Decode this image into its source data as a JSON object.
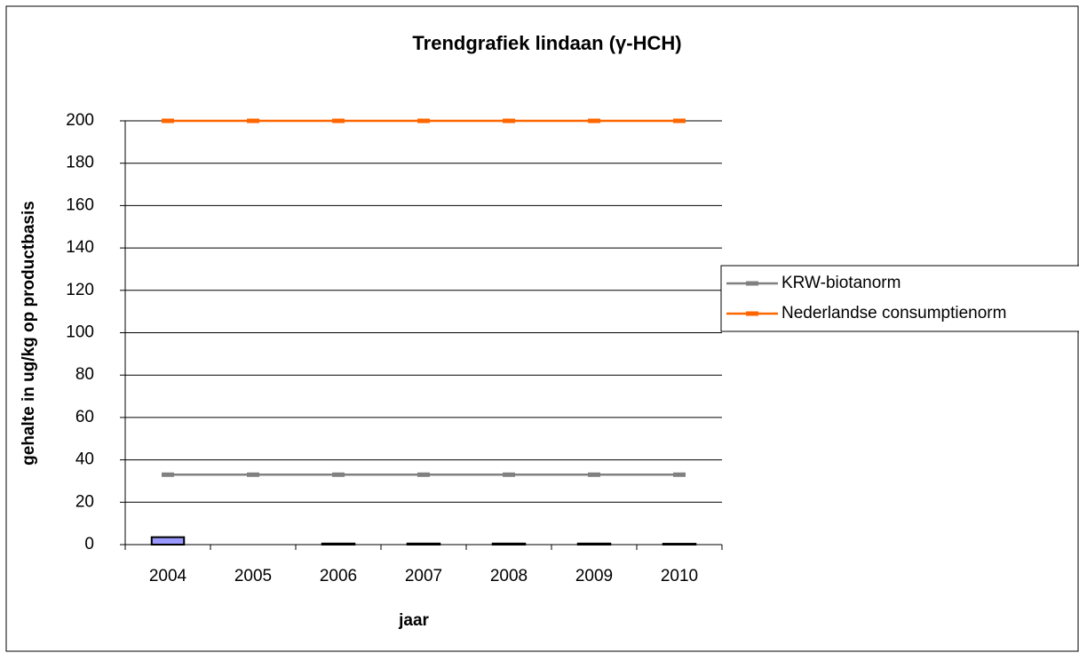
{
  "chart_data": {
    "type": "bar_line",
    "title": "Trendgrafiek lindaan (γ-HCH)",
    "x_label": "jaar",
    "y_label": "gehalte in ug/kg op productbasis",
    "categories": [
      "2004",
      "2005",
      "2006",
      "2007",
      "2008",
      "2009",
      "2010"
    ],
    "bars": {
      "color": "#9999ff",
      "values": [
        3.5,
        null,
        0.5,
        0.5,
        0.5,
        0.5,
        0.4
      ]
    },
    "series": [
      {
        "name": "KRW-biotanorm",
        "color": "#808080",
        "values": [
          33,
          33,
          33,
          33,
          33,
          33,
          33
        ]
      },
      {
        "name": "Nederlandse consumptienorm",
        "color": "#ff6600",
        "values": [
          200,
          200,
          200,
          200,
          200,
          200,
          200
        ]
      }
    ],
    "ylim": [
      0,
      200
    ],
    "yticks": [
      0,
      20,
      40,
      60,
      80,
      100,
      120,
      140,
      160,
      180,
      200
    ],
    "grid": true,
    "legend": "right"
  }
}
